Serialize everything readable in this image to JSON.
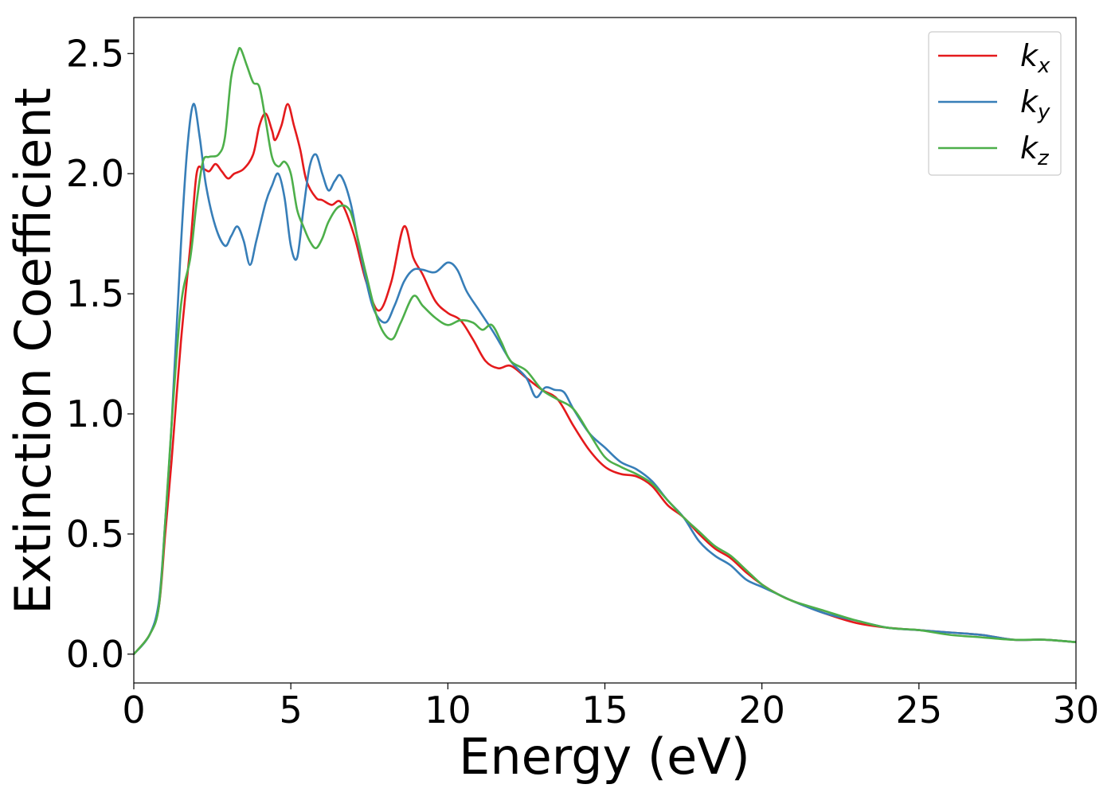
{
  "chart_data": {
    "type": "line",
    "title": "",
    "xlabel": "Energy (eV)",
    "ylabel": "Extinction Coefficient",
    "xlim": [
      0,
      30
    ],
    "ylim": [
      -0.12,
      2.65
    ],
    "xticks": [
      0,
      5,
      10,
      15,
      20,
      25,
      30
    ],
    "xtick_labels": [
      "0",
      "5",
      "10",
      "15",
      "20",
      "25",
      "30"
    ],
    "yticks": [
      0.0,
      0.5,
      1.0,
      1.5,
      2.0,
      2.5
    ],
    "ytick_labels": [
      "0.0",
      "0.5",
      "1.0",
      "1.5",
      "2.0",
      "2.5"
    ],
    "grid": false,
    "legend_position": "top-right",
    "series": [
      {
        "name": "kx",
        "label_base": "k",
        "label_sub": "x",
        "color": "#e41a1c",
        "x": [
          0,
          0.5,
          0.8,
          1.0,
          1.2,
          1.5,
          1.8,
          2.0,
          2.2,
          2.4,
          2.6,
          2.8,
          3.0,
          3.2,
          3.5,
          3.8,
          4.0,
          4.2,
          4.4,
          4.5,
          4.7,
          4.9,
          5.1,
          5.3,
          5.5,
          5.8,
          6.0,
          6.3,
          6.6,
          7.0,
          7.4,
          7.8,
          8.2,
          8.6,
          8.9,
          9.2,
          9.6,
          10.0,
          10.4,
          10.8,
          11.2,
          11.6,
          12.0,
          12.5,
          13.0,
          13.5,
          14.0,
          14.5,
          15.0,
          15.5,
          16.0,
          16.5,
          17.0,
          17.5,
          18.0,
          18.5,
          19.0,
          19.5,
          20.0,
          20.5,
          21.0,
          22.0,
          23.0,
          24.0,
          25.0,
          26.0,
          27.0,
          28.0,
          29.0,
          30.0
        ],
        "y": [
          0.0,
          0.08,
          0.2,
          0.5,
          0.8,
          1.3,
          1.7,
          2.0,
          2.02,
          2.01,
          2.04,
          2.01,
          1.98,
          2.0,
          2.02,
          2.08,
          2.2,
          2.25,
          2.18,
          2.14,
          2.2,
          2.29,
          2.2,
          2.1,
          1.97,
          1.9,
          1.89,
          1.87,
          1.88,
          1.75,
          1.55,
          1.43,
          1.55,
          1.78,
          1.65,
          1.58,
          1.47,
          1.42,
          1.39,
          1.31,
          1.22,
          1.19,
          1.2,
          1.15,
          1.1,
          1.06,
          0.95,
          0.85,
          0.78,
          0.75,
          0.74,
          0.7,
          0.62,
          0.57,
          0.5,
          0.44,
          0.4,
          0.34,
          0.29,
          0.25,
          0.22,
          0.17,
          0.13,
          0.11,
          0.1,
          0.09,
          0.08,
          0.06,
          0.06,
          0.05
        ]
      },
      {
        "name": "ky",
        "label_base": "k",
        "label_sub": "y",
        "color": "#377eb8",
        "x": [
          0,
          0.5,
          0.8,
          1.0,
          1.2,
          1.5,
          1.7,
          1.9,
          2.1,
          2.3,
          2.6,
          2.9,
          3.1,
          3.3,
          3.5,
          3.7,
          3.9,
          4.2,
          4.4,
          4.6,
          4.8,
          5.0,
          5.2,
          5.4,
          5.6,
          5.8,
          6.0,
          6.2,
          6.4,
          6.6,
          6.9,
          7.2,
          7.6,
          8.0,
          8.3,
          8.6,
          8.9,
          9.2,
          9.6,
          10.0,
          10.3,
          10.6,
          11.0,
          11.5,
          12.0,
          12.5,
          12.8,
          13.1,
          13.4,
          13.7,
          14.0,
          14.5,
          15.0,
          15.5,
          16.0,
          16.5,
          17.0,
          17.5,
          18.0,
          18.5,
          19.0,
          19.5,
          20.0,
          20.5,
          21.0,
          22.0,
          23.0,
          24.0,
          25.0,
          26.0,
          27.0,
          28.0,
          29.0,
          30.0
        ],
        "y": [
          0.0,
          0.08,
          0.22,
          0.55,
          0.95,
          1.7,
          2.1,
          2.29,
          2.15,
          1.95,
          1.78,
          1.7,
          1.74,
          1.78,
          1.72,
          1.62,
          1.72,
          1.88,
          1.95,
          2.0,
          1.9,
          1.7,
          1.65,
          1.85,
          2.03,
          2.08,
          2.0,
          1.93,
          1.97,
          1.99,
          1.88,
          1.68,
          1.45,
          1.38,
          1.45,
          1.55,
          1.6,
          1.6,
          1.59,
          1.63,
          1.6,
          1.51,
          1.43,
          1.33,
          1.22,
          1.15,
          1.07,
          1.11,
          1.1,
          1.09,
          1.02,
          0.92,
          0.86,
          0.8,
          0.77,
          0.72,
          0.64,
          0.57,
          0.47,
          0.41,
          0.37,
          0.31,
          0.28,
          0.25,
          0.22,
          0.17,
          0.14,
          0.11,
          0.1,
          0.09,
          0.08,
          0.06,
          0.06,
          0.05
        ]
      },
      {
        "name": "kz",
        "label_base": "k",
        "label_sub": "z",
        "color": "#4daf4a",
        "x": [
          0,
          0.5,
          0.8,
          1.0,
          1.2,
          1.5,
          1.8,
          2.0,
          2.2,
          2.4,
          2.7,
          2.9,
          3.1,
          3.3,
          3.4,
          3.6,
          3.8,
          4.0,
          4.2,
          4.4,
          4.6,
          4.8,
          5.0,
          5.2,
          5.4,
          5.6,
          5.8,
          6.0,
          6.2,
          6.5,
          6.8,
          7.0,
          7.4,
          7.8,
          8.2,
          8.5,
          8.9,
          9.2,
          9.6,
          10.0,
          10.4,
          10.8,
          11.1,
          11.4,
          11.7,
          12.0,
          12.5,
          13.0,
          13.5,
          14.0,
          14.5,
          15.0,
          15.5,
          16.0,
          16.5,
          17.0,
          17.5,
          18.0,
          18.5,
          19.0,
          19.5,
          20.0,
          20.5,
          21.0,
          22.0,
          23.0,
          24.0,
          25.0,
          26.0,
          27.0,
          28.0,
          29.0,
          30.0
        ],
        "y": [
          0.0,
          0.08,
          0.2,
          0.55,
          0.95,
          1.45,
          1.65,
          1.88,
          2.05,
          2.07,
          2.08,
          2.15,
          2.4,
          2.5,
          2.52,
          2.45,
          2.38,
          2.36,
          2.22,
          2.07,
          2.03,
          2.05,
          2.0,
          1.85,
          1.78,
          1.72,
          1.69,
          1.73,
          1.8,
          1.86,
          1.86,
          1.8,
          1.58,
          1.38,
          1.31,
          1.38,
          1.49,
          1.45,
          1.4,
          1.37,
          1.39,
          1.38,
          1.35,
          1.37,
          1.3,
          1.22,
          1.18,
          1.1,
          1.06,
          1.02,
          0.92,
          0.82,
          0.78,
          0.75,
          0.71,
          0.64,
          0.57,
          0.51,
          0.45,
          0.41,
          0.35,
          0.29,
          0.25,
          0.22,
          0.18,
          0.14,
          0.11,
          0.1,
          0.08,
          0.07,
          0.06,
          0.06,
          0.05
        ]
      }
    ]
  }
}
